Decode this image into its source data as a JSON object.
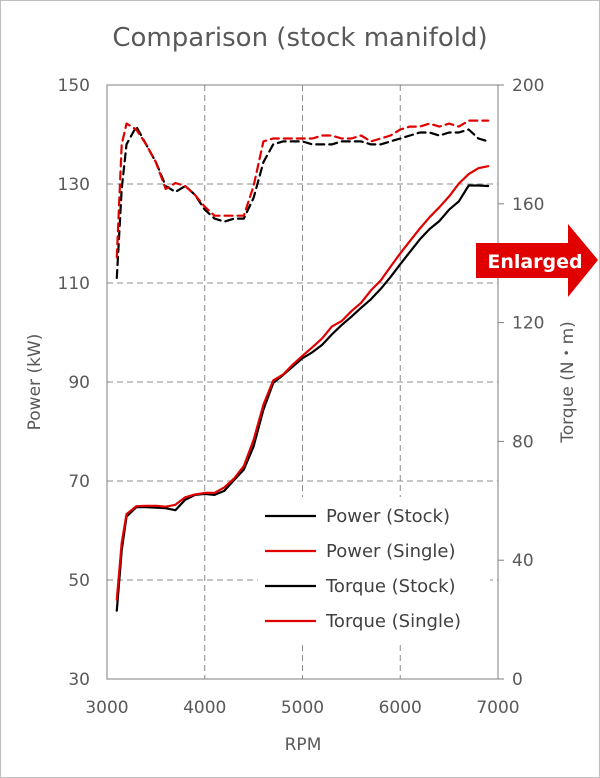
{
  "chart_data": {
    "type": "line",
    "title": "Comparison (stock manifold)",
    "xlabel": "RPM",
    "ylabel_left": "Power (kW)",
    "ylabel_right": "Torque (N・m)",
    "xlim": [
      3000,
      7000
    ],
    "ylim_left": [
      30,
      150
    ],
    "ylim_right": [
      0,
      200
    ],
    "x_ticks": [
      3000,
      4000,
      5000,
      6000,
      7000
    ],
    "y_ticks_left": [
      30,
      50,
      70,
      90,
      110,
      130,
      150
    ],
    "y_ticks_right": [
      0,
      40,
      80,
      120,
      160,
      200
    ],
    "grid": true,
    "legend_position": "bottom-right",
    "annotation": "Enlarged",
    "series": [
      {
        "name": "Power (Stock)",
        "axis": "left",
        "color": "#000000",
        "dash": false,
        "x": [
          3100,
          3150,
          3200,
          3300,
          3400,
          3500,
          3600,
          3700,
          3800,
          3900,
          4000,
          4100,
          4200,
          4300,
          4400,
          4500,
          4600,
          4700,
          4800,
          4900,
          5000,
          5100,
          5200,
          5300,
          5400,
          5500,
          5600,
          5700,
          5800,
          5900,
          6000,
          6100,
          6200,
          6300,
          6400,
          6500,
          6600,
          6700,
          6800,
          6900
        ],
        "y": [
          43.8,
          56,
          62.8,
          64.7,
          64.7,
          64.6,
          64.5,
          64.1,
          66.2,
          67.2,
          67.4,
          67.2,
          68,
          70.2,
          72.3,
          77,
          84.4,
          89.8,
          91.4,
          93.1,
          94.8,
          96,
          97.5,
          99.6,
          101.5,
          103.2,
          105,
          106.7,
          108.8,
          111.2,
          113.8,
          116.3,
          118.8,
          120.9,
          122.5,
          124.8,
          126.5,
          129.7,
          129.7,
          129.6
        ]
      },
      {
        "name": "Power (Single)",
        "axis": "left",
        "color": "#e00000",
        "dash": false,
        "x": [
          3100,
          3150,
          3200,
          3300,
          3400,
          3500,
          3600,
          3700,
          3800,
          3900,
          4000,
          4100,
          4200,
          4300,
          4400,
          4500,
          4600,
          4700,
          4800,
          4900,
          5000,
          5100,
          5200,
          5300,
          5400,
          5500,
          5600,
          5700,
          5800,
          5900,
          6000,
          6100,
          6200,
          6300,
          6400,
          6500,
          6600,
          6700,
          6800,
          6900
        ],
        "y": [
          46,
          57.5,
          63.3,
          64.9,
          65,
          65,
          64.8,
          65.2,
          66.7,
          67.3,
          67.6,
          67.6,
          68.7,
          70.5,
          73,
          78.3,
          85.4,
          90.3,
          91.5,
          93.5,
          95.3,
          97,
          98.8,
          101.2,
          102.3,
          104.3,
          106,
          108.5,
          110.5,
          113.3,
          116,
          118.5,
          121,
          123.3,
          125.3,
          127.5,
          130.1,
          132,
          133.2,
          133.6
        ]
      },
      {
        "name": "Torque (Stock)",
        "axis": "right",
        "color": "#000000",
        "dash": true,
        "x": [
          3100,
          3150,
          3200,
          3300,
          3400,
          3500,
          3600,
          3700,
          3800,
          3900,
          4000,
          4100,
          4200,
          4300,
          4400,
          4500,
          4600,
          4700,
          4800,
          4900,
          5000,
          5100,
          5200,
          5300,
          5400,
          5500,
          5600,
          5700,
          5800,
          5900,
          6000,
          6100,
          6200,
          6300,
          6400,
          6500,
          6600,
          6700,
          6800,
          6900
        ],
        "y": [
          135,
          165,
          180,
          186,
          180,
          174,
          166,
          164,
          166,
          163,
          158,
          155,
          154,
          155,
          155,
          162,
          174,
          180,
          181,
          181,
          181,
          180,
          180,
          180,
          181,
          181,
          181,
          180,
          180,
          181,
          182,
          183,
          184,
          184,
          183,
          184,
          184,
          185,
          182,
          181
        ]
      },
      {
        "name": "Torque (Single)",
        "axis": "right",
        "color": "#e00000",
        "dash": true,
        "x": [
          3100,
          3150,
          3200,
          3300,
          3400,
          3500,
          3600,
          3700,
          3800,
          3900,
          4000,
          4100,
          4200,
          4300,
          4400,
          4500,
          4600,
          4700,
          4800,
          4900,
          5000,
          5100,
          5200,
          5300,
          5400,
          5500,
          5600,
          5700,
          5800,
          5900,
          6000,
          6100,
          6200,
          6300,
          6400,
          6500,
          6600,
          6700,
          6800,
          6900
        ],
        "y": [
          142,
          180,
          187,
          185,
          180,
          174,
          165,
          167,
          166,
          163,
          159,
          156,
          156,
          156,
          156,
          166,
          181,
          182,
          182,
          182,
          182,
          182,
          183,
          183,
          182,
          182,
          183,
          181,
          182,
          183,
          185,
          186,
          186,
          187,
          186,
          187,
          186,
          188,
          188,
          188
        ]
      }
    ]
  }
}
